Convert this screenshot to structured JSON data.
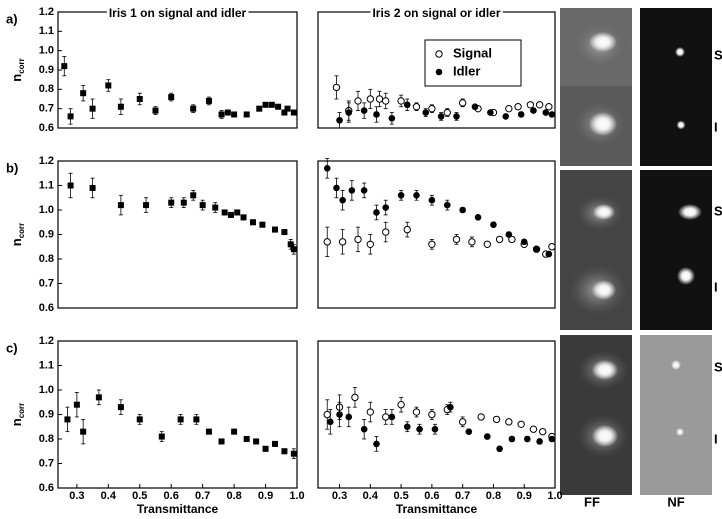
{
  "chart_data": [
    {
      "type": "scatter",
      "panel_label": "a)",
      "title": "Iris 1 on signal and idler",
      "ylabel": "n",
      "ylabel_sub": "corr",
      "xlim": [
        0.24,
        1.0
      ],
      "ylim": [
        0.6,
        1.2
      ],
      "yticks": [
        0.6,
        0.7,
        0.8,
        0.9,
        {
          "value": 1,
          "label": "1.0"
        },
        1.1,
        1.2
      ],
      "series": [
        {
          "marker": "square",
          "color": "#000000",
          "x": [
            0.26,
            0.28,
            0.32,
            0.35,
            0.4,
            0.44,
            0.5,
            0.55,
            0.6,
            0.67,
            0.72,
            0.76,
            0.78,
            0.8,
            0.84,
            0.88,
            0.9,
            0.92,
            0.94,
            0.96,
            0.97,
            0.99
          ],
          "values": [
            0.92,
            0.66,
            0.78,
            0.7,
            0.82,
            0.71,
            0.75,
            0.69,
            0.76,
            0.7,
            0.74,
            0.67,
            0.68,
            0.67,
            0.67,
            0.7,
            0.72,
            0.72,
            0.71,
            0.68,
            0.7,
            0.68
          ],
          "errors": [
            0.05,
            0.04,
            0.04,
            0.05,
            0.03,
            0.04,
            0.03,
            0.02,
            0.02,
            0.02,
            0.02,
            0.02,
            0.01,
            0.01,
            0.01,
            0.01,
            0.01,
            0.01,
            0.01,
            0.01,
            0.01,
            0.01
          ]
        }
      ]
    },
    {
      "type": "scatter",
      "title": "Iris 2 on signal or idler",
      "xlim": [
        0.23,
        1.0
      ],
      "ylim": [
        0.6,
        1.2
      ],
      "legend": "upper right",
      "series": [
        {
          "name": "Signal",
          "marker": "open-circle",
          "color": "#000000",
          "x": [
            0.29,
            0.33,
            0.36,
            0.4,
            0.43,
            0.45,
            0.5,
            0.55,
            0.6,
            0.65,
            0.7,
            0.75,
            0.8,
            0.85,
            0.88,
            0.92,
            0.95,
            0.98
          ],
          "values": [
            0.81,
            0.69,
            0.74,
            0.75,
            0.75,
            0.74,
            0.74,
            0.71,
            0.7,
            0.68,
            0.73,
            0.7,
            0.68,
            0.7,
            0.71,
            0.72,
            0.72,
            0.71
          ],
          "errors": [
            0.06,
            0.05,
            0.05,
            0.05,
            0.04,
            0.04,
            0.03,
            0.02,
            0.02,
            0.02,
            0.02,
            0.01,
            0.01,
            0.01,
            0.01,
            0.01,
            0.01,
            0.01
          ]
        },
        {
          "name": "Idler",
          "marker": "filled-circle",
          "color": "#000000",
          "x": [
            0.3,
            0.33,
            0.38,
            0.42,
            0.47,
            0.52,
            0.58,
            0.63,
            0.68,
            0.74,
            0.79,
            0.84,
            0.89,
            0.93,
            0.97,
            0.99
          ],
          "values": [
            0.64,
            0.68,
            0.69,
            0.67,
            0.65,
            0.72,
            0.68,
            0.66,
            0.66,
            0.71,
            0.68,
            0.66,
            0.67,
            0.69,
            0.68,
            0.67
          ],
          "errors": [
            0.04,
            0.05,
            0.04,
            0.04,
            0.03,
            0.03,
            0.02,
            0.02,
            0.02,
            0.01,
            0.01,
            0.01,
            0.01,
            0.01,
            0.01,
            0.01
          ]
        }
      ]
    },
    {
      "type": "scatter",
      "panel_label": "b)",
      "ylabel": "n",
      "ylabel_sub": "corr",
      "xlim": [
        0.24,
        1.0
      ],
      "ylim": [
        0.6,
        1.2
      ],
      "yticks": [
        0.6,
        0.7,
        0.8,
        0.9,
        {
          "value": 1,
          "label": "1.0"
        },
        1.1,
        1.2
      ],
      "series": [
        {
          "marker": "square",
          "color": "#000000",
          "x": [
            0.28,
            0.35,
            0.44,
            0.52,
            0.6,
            0.64,
            0.67,
            0.7,
            0.74,
            0.77,
            0.79,
            0.81,
            0.83,
            0.86,
            0.89,
            0.93,
            0.96,
            0.98,
            0.99
          ],
          "values": [
            1.1,
            1.09,
            1.02,
            1.02,
            1.03,
            1.03,
            1.06,
            1.02,
            1.01,
            0.99,
            0.98,
            0.99,
            0.97,
            0.95,
            0.94,
            0.92,
            0.91,
            0.86,
            0.84
          ],
          "errors": [
            0.05,
            0.04,
            0.04,
            0.03,
            0.02,
            0.02,
            0.02,
            0.02,
            0.02,
            0.01,
            0.01,
            0.01,
            0.01,
            0.01,
            0.01,
            0.01,
            0.01,
            0.02,
            0.02
          ]
        }
      ]
    },
    {
      "type": "scatter",
      "xlim": [
        0.23,
        1.0
      ],
      "ylim": [
        0.6,
        1.2
      ],
      "series": [
        {
          "marker": "open-circle",
          "color": "#000000",
          "x": [
            0.26,
            0.31,
            0.36,
            0.4,
            0.45,
            0.52,
            0.6,
            0.68,
            0.73,
            0.78,
            0.82,
            0.86,
            0.9,
            0.94,
            0.97,
            0.99
          ],
          "values": [
            0.87,
            0.87,
            0.88,
            0.86,
            0.91,
            0.92,
            0.86,
            0.88,
            0.87,
            0.86,
            0.88,
            0.88,
            0.86,
            0.84,
            0.82,
            0.85
          ],
          "errors": [
            0.06,
            0.05,
            0.05,
            0.04,
            0.04,
            0.03,
            0.02,
            0.02,
            0.02,
            0.01,
            0.01,
            0.01,
            0.01,
            0.01,
            0.01,
            0.01
          ]
        },
        {
          "marker": "filled-circle",
          "color": "#000000",
          "x": [
            0.26,
            0.29,
            0.31,
            0.34,
            0.38,
            0.42,
            0.45,
            0.5,
            0.55,
            0.6,
            0.65,
            0.7,
            0.75,
            0.8,
            0.85,
            0.9,
            0.94,
            0.98
          ],
          "values": [
            1.17,
            1.09,
            1.04,
            1.08,
            1.08,
            0.99,
            1.01,
            1.06,
            1.06,
            1.04,
            1.02,
            1.0,
            0.97,
            0.94,
            0.9,
            0.87,
            0.84,
            0.82
          ],
          "errors": [
            0.04,
            0.04,
            0.04,
            0.04,
            0.03,
            0.03,
            0.03,
            0.02,
            0.02,
            0.02,
            0.02,
            0.01,
            0.01,
            0.01,
            0.01,
            0.01,
            0.01,
            0.01
          ]
        }
      ]
    },
    {
      "type": "scatter",
      "panel_label": "c)",
      "ylabel": "n",
      "ylabel_sub": "corr",
      "xlabel": "Transmittance",
      "xlim": [
        0.24,
        1.0
      ],
      "ylim": [
        0.6,
        1.2
      ],
      "yticks": [
        0.6,
        0.7,
        0.8,
        0.9,
        {
          "value": 1,
          "label": "1.0"
        },
        1.1,
        1.2
      ],
      "xticks": [
        0.3,
        0.4,
        0.5,
        0.6,
        0.7,
        0.8,
        0.9,
        {
          "value": 1,
          "label": "1.0"
        }
      ],
      "series": [
        {
          "marker": "square",
          "color": "#000000",
          "x": [
            0.27,
            0.3,
            0.32,
            0.37,
            0.44,
            0.5,
            0.57,
            0.63,
            0.68,
            0.72,
            0.76,
            0.8,
            0.84,
            0.87,
            0.9,
            0.93,
            0.96,
            0.99
          ],
          "values": [
            0.88,
            0.94,
            0.83,
            0.97,
            0.93,
            0.88,
            0.81,
            0.88,
            0.88,
            0.83,
            0.79,
            0.83,
            0.8,
            0.79,
            0.76,
            0.78,
            0.75,
            0.74
          ],
          "errors": [
            0.05,
            0.05,
            0.05,
            0.03,
            0.03,
            0.02,
            0.02,
            0.02,
            0.02,
            0.01,
            0.01,
            0.01,
            0.01,
            0.01,
            0.01,
            0.01,
            0.01,
            0.02
          ]
        }
      ]
    },
    {
      "type": "scatter",
      "xlabel": "Transmittance",
      "xlim": [
        0.23,
        1.0
      ],
      "ylim": [
        0.6,
        1.2
      ],
      "xticks": [
        0.3,
        0.4,
        0.5,
        0.6,
        0.7,
        0.8,
        0.9,
        {
          "value": 1,
          "label": "1.0"
        }
      ],
      "series": [
        {
          "marker": "open-circle",
          "color": "#000000",
          "x": [
            0.26,
            0.3,
            0.35,
            0.4,
            0.45,
            0.5,
            0.55,
            0.6,
            0.65,
            0.7,
            0.76,
            0.81,
            0.85,
            0.89,
            0.93,
            0.96,
            0.99
          ],
          "values": [
            0.9,
            0.93,
            0.97,
            0.91,
            0.89,
            0.94,
            0.91,
            0.9,
            0.92,
            0.87,
            0.89,
            0.88,
            0.87,
            0.86,
            0.84,
            0.83,
            0.81
          ],
          "errors": [
            0.06,
            0.05,
            0.04,
            0.04,
            0.03,
            0.03,
            0.02,
            0.02,
            0.02,
            0.02,
            0.01,
            0.01,
            0.01,
            0.01,
            0.01,
            0.01,
            0.01
          ]
        },
        {
          "marker": "filled-circle",
          "color": "#000000",
          "x": [
            0.27,
            0.3,
            0.33,
            0.38,
            0.42,
            0.47,
            0.52,
            0.56,
            0.61,
            0.66,
            0.72,
            0.78,
            0.82,
            0.86,
            0.91,
            0.95,
            0.99
          ],
          "values": [
            0.87,
            0.9,
            0.89,
            0.84,
            0.78,
            0.89,
            0.85,
            0.84,
            0.84,
            0.93,
            0.83,
            0.81,
            0.76,
            0.8,
            0.8,
            0.79,
            0.8
          ],
          "errors": [
            0.05,
            0.05,
            0.04,
            0.04,
            0.03,
            0.03,
            0.02,
            0.02,
            0.02,
            0.02,
            0.01,
            0.01,
            0.01,
            0.01,
            0.01,
            0.01,
            0.01
          ]
        }
      ]
    }
  ],
  "image_panel": {
    "column_labels": [
      "FF",
      "NF"
    ],
    "row_labels": [
      [
        "S",
        "I"
      ],
      [
        "S",
        "I"
      ],
      [
        "S",
        "I"
      ]
    ]
  }
}
